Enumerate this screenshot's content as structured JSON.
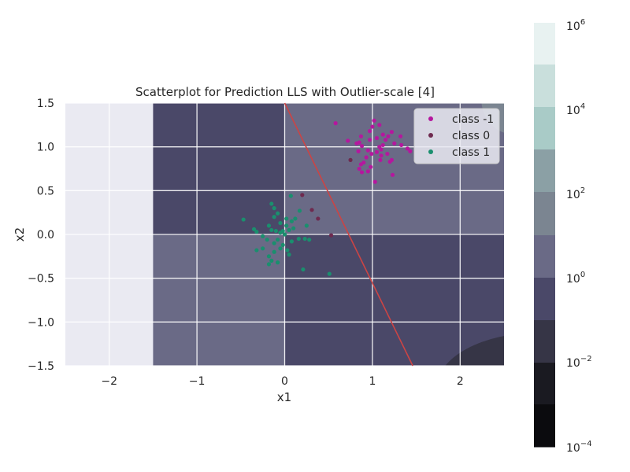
{
  "chart_data": {
    "type": "scatter",
    "title": "Scatterplot for Prediction LLS with Outlier-scale [4]",
    "xlabel": "x1",
    "ylabel": "x2",
    "xlim": [
      -2.5,
      2.5
    ],
    "ylim": [
      -1.5,
      1.5
    ],
    "x_ticks": [
      -2,
      -1,
      0,
      1,
      2
    ],
    "x_tick_labels": [
      "−2",
      "−1",
      "0",
      "1",
      "2"
    ],
    "y_ticks": [
      -1.5,
      -1.0,
      -0.5,
      0.0,
      0.5,
      1.0,
      1.5
    ],
    "y_tick_labels": [
      "−1.5",
      "−1.0",
      "−0.5",
      "0.0",
      "0.5",
      "1.0",
      "1.5"
    ],
    "grid": true,
    "legend_position": "top-right",
    "background_color": "#eaeaf2",
    "decision_line": {
      "color": "#cc4444",
      "points": [
        [
          0,
          1.5
        ],
        [
          1.46,
          -1.5
        ]
      ]
    },
    "contour_regions": [
      {
        "region": "x < -1.5",
        "level_index": -1
      },
      {
        "region": "-1.5 <= x < 0, y >= 0",
        "level_index": 1
      },
      {
        "region": "-1.5 <= x < 0, y < 0",
        "level_index": 3
      },
      {
        "region": "x >= 0, y >= 0",
        "level_index": 3
      },
      {
        "region": "x >= 0, y < 0",
        "level_index": 2
      },
      {
        "region": "bottom-right corner",
        "level_index": 0
      }
    ],
    "series": [
      {
        "name": "class -1",
        "color": "#b5179e",
        "points": [
          [
            0.58,
            1.27
          ],
          [
            1.02,
            1.3
          ],
          [
            1.08,
            1.25
          ],
          [
            1.0,
            1.23
          ],
          [
            1.22,
            1.17
          ],
          [
            0.97,
            1.18
          ],
          [
            1.12,
            1.14
          ],
          [
            1.18,
            1.12
          ],
          [
            0.87,
            1.12
          ],
          [
            1.05,
            1.1
          ],
          [
            1.32,
            1.12
          ],
          [
            1.15,
            1.08
          ],
          [
            0.97,
            1.08
          ],
          [
            0.72,
            1.07
          ],
          [
            0.85,
            1.05
          ],
          [
            0.82,
            1.04
          ],
          [
            1.25,
            1.04
          ],
          [
            1.33,
            1.02
          ],
          [
            1.12,
            1.02
          ],
          [
            1.4,
            0.98
          ],
          [
            0.88,
            1.01
          ],
          [
            1.08,
            1.0
          ],
          [
            1.43,
            0.95
          ],
          [
            1.1,
            0.97
          ],
          [
            0.95,
            0.96
          ],
          [
            0.84,
            0.95
          ],
          [
            1.05,
            0.94
          ],
          [
            1.17,
            0.92
          ],
          [
            0.99,
            0.92
          ],
          [
            1.1,
            0.9
          ],
          [
            0.93,
            0.88
          ],
          [
            1.22,
            0.85
          ],
          [
            1.09,
            0.85
          ],
          [
            1.2,
            0.83
          ],
          [
            0.9,
            0.82
          ],
          [
            0.87,
            0.8
          ],
          [
            0.98,
            0.77
          ],
          [
            0.85,
            0.75
          ],
          [
            0.95,
            0.72
          ],
          [
            0.88,
            0.71
          ],
          [
            1.23,
            0.68
          ],
          [
            1.03,
            0.6
          ]
        ]
      },
      {
        "name": "class 0",
        "color": "#6e2a4f",
        "points": [
          [
            0.75,
            0.85
          ],
          [
            0.2,
            0.45
          ],
          [
            0.31,
            0.28
          ],
          [
            0.38,
            0.18
          ],
          [
            0.53,
            -0.01
          ]
        ]
      },
      {
        "name": "class 1",
        "color": "#1a8f6e",
        "points": [
          [
            0.07,
            0.44
          ],
          [
            -0.15,
            0.35
          ],
          [
            -0.12,
            0.3
          ],
          [
            0.17,
            0.27
          ],
          [
            -0.08,
            0.24
          ],
          [
            -0.12,
            0.2
          ],
          [
            0.02,
            0.18
          ],
          [
            0.12,
            0.18
          ],
          [
            -0.47,
            0.17
          ],
          [
            0.08,
            0.15
          ],
          [
            0.25,
            0.1
          ],
          [
            -0.05,
            0.13
          ],
          [
            0.02,
            0.1
          ],
          [
            -0.18,
            0.1
          ],
          [
            0.05,
            0.05
          ],
          [
            0.1,
            0.07
          ],
          [
            -0.35,
            0.06
          ],
          [
            -0.15,
            0.05
          ],
          [
            -0.1,
            0.04
          ],
          [
            -0.02,
            0.04
          ],
          [
            -0.32,
            0.03
          ],
          [
            0.0,
            0.0
          ],
          [
            -0.25,
            -0.02
          ],
          [
            -0.05,
            0.02
          ],
          [
            0.16,
            -0.05
          ],
          [
            0.23,
            -0.05
          ],
          [
            -0.2,
            -0.06
          ],
          [
            -0.08,
            -0.06
          ],
          [
            0.08,
            -0.08
          ],
          [
            0.28,
            -0.06
          ],
          [
            -0.12,
            -0.1
          ],
          [
            -0.02,
            -0.12
          ],
          [
            -0.05,
            -0.16
          ],
          [
            -0.25,
            -0.16
          ],
          [
            -0.32,
            -0.18
          ],
          [
            -0.12,
            -0.2
          ],
          [
            0.03,
            -0.18
          ],
          [
            -0.18,
            -0.25
          ],
          [
            0.05,
            -0.23
          ],
          [
            -0.15,
            -0.3
          ],
          [
            -0.08,
            -0.32
          ],
          [
            -0.18,
            -0.34
          ],
          [
            0.21,
            -0.4
          ],
          [
            0.51,
            -0.45
          ]
        ]
      }
    ],
    "colorbar": {
      "scale": "log",
      "levels": [
        -4,
        -3.5,
        -3,
        -2.5,
        -2,
        -1.5,
        -1,
        0,
        1,
        2,
        3,
        4,
        5,
        6
      ],
      "tick_labels": [
        {
          "value": 6,
          "base": "10",
          "exp": "6"
        },
        {
          "value": 4,
          "base": "10",
          "exp": "4"
        },
        {
          "value": 2,
          "base": "10",
          "exp": "2"
        },
        {
          "value": 0,
          "base": "10",
          "exp": "0"
        },
        {
          "value": -2,
          "base": "10",
          "exp": "−2"
        },
        {
          "value": -4,
          "base": "10",
          "exp": "−4"
        }
      ],
      "colors": [
        "#0b0b0e",
        "#1a1a21",
        "#262631",
        "#363546",
        "#4a4868",
        "#5b5a78",
        "#6a6a86",
        "#7b8591",
        "#8ba0a5",
        "#9bb8b5",
        "#b0cfca",
        "#c9dfdc",
        "#e8f2f1"
      ]
    }
  }
}
